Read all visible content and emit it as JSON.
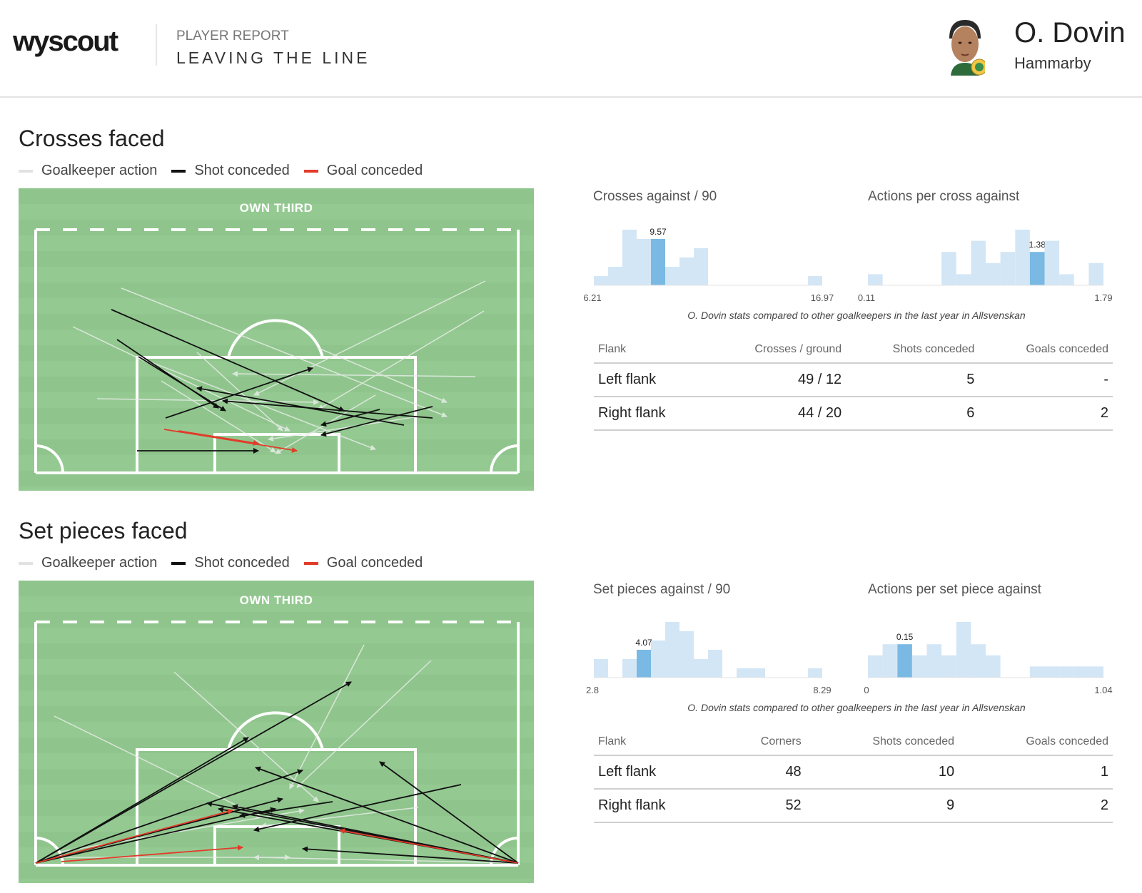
{
  "header": {
    "logo": "wyscout",
    "kicker": "PLAYER REPORT",
    "title": "LEAVING THE LINE",
    "player_name": "O. Dovin",
    "team": "Hammarby"
  },
  "legend": {
    "gk_action": "Goalkeeper action",
    "shot": "Shot conceded",
    "goal": "Goal conceded",
    "colors": {
      "gk_action": "#e2e2e2",
      "shot": "#111111",
      "goal": "#e23b2a"
    }
  },
  "crosses": {
    "section_title": "Crosses faced",
    "pitch_label": "OWN THIRD",
    "note": "O. Dovin stats compared to other goalkeepers in the last year in Allsvenskan",
    "table": {
      "headers": [
        "Flank",
        "Crosses / ground",
        "Shots conceded",
        "Goals conceded"
      ],
      "rows": [
        [
          "Left flank",
          "49 / 12",
          "5",
          "-"
        ],
        [
          "Right flank",
          "44 / 20",
          "6",
          "2"
        ]
      ]
    }
  },
  "setpieces": {
    "section_title": "Set pieces faced",
    "pitch_label": "OWN THIRD",
    "note": "O. Dovin stats compared to other goalkeepers in the last year in Allsvenskan",
    "table": {
      "headers": [
        "Flank",
        "Corners",
        "Shots conceded",
        "Goals conceded"
      ],
      "rows": [
        [
          "Left flank",
          "48",
          "10",
          "1"
        ],
        [
          "Right flank",
          "52",
          "9",
          "2"
        ]
      ]
    }
  },
  "chart_data": [
    {
      "type": "bar",
      "title": "Crosses against / 90",
      "xlim": [
        6.21,
        16.97
      ],
      "counts": [
        1,
        2,
        6,
        5,
        5,
        2,
        3,
        4,
        0,
        0,
        0,
        0,
        0,
        0,
        0,
        1
      ],
      "highlight_index": 4,
      "highlight_label": "9.57",
      "colors": {
        "bar": "#d3e6f6",
        "highlight": "#7ab9e3"
      }
    },
    {
      "type": "bar",
      "title": "Actions per cross against",
      "xlim": [
        0.11,
        1.79
      ],
      "counts": [
        1,
        0,
        0,
        0,
        0,
        3,
        1,
        4,
        2,
        3,
        5,
        3,
        4,
        1,
        0,
        2
      ],
      "highlight_index": 11,
      "highlight_label": "1.38",
      "colors": {
        "bar": "#d3e6f6",
        "highlight": "#7ab9e3"
      }
    },
    {
      "type": "bar",
      "title": "Set pieces against / 90",
      "xlim": [
        2.8,
        8.29
      ],
      "counts": [
        2,
        0,
        2,
        3,
        4,
        6,
        5,
        2,
        3,
        0,
        1,
        1,
        0,
        0,
        0,
        1
      ],
      "highlight_index": 3,
      "highlight_label": "4.07",
      "colors": {
        "bar": "#d3e6f6",
        "highlight": "#7ab9e3"
      }
    },
    {
      "type": "bar",
      "title": "Actions per set piece against",
      "xlim": [
        0,
        1.04
      ],
      "counts": [
        2,
        3,
        3,
        2,
        3,
        2,
        5,
        3,
        2,
        0,
        0,
        1,
        1,
        1,
        1,
        1
      ],
      "highlight_index": 2,
      "highlight_label": "0.15",
      "colors": {
        "bar": "#d3e6f6",
        "highlight": "#7ab9e3"
      }
    }
  ]
}
